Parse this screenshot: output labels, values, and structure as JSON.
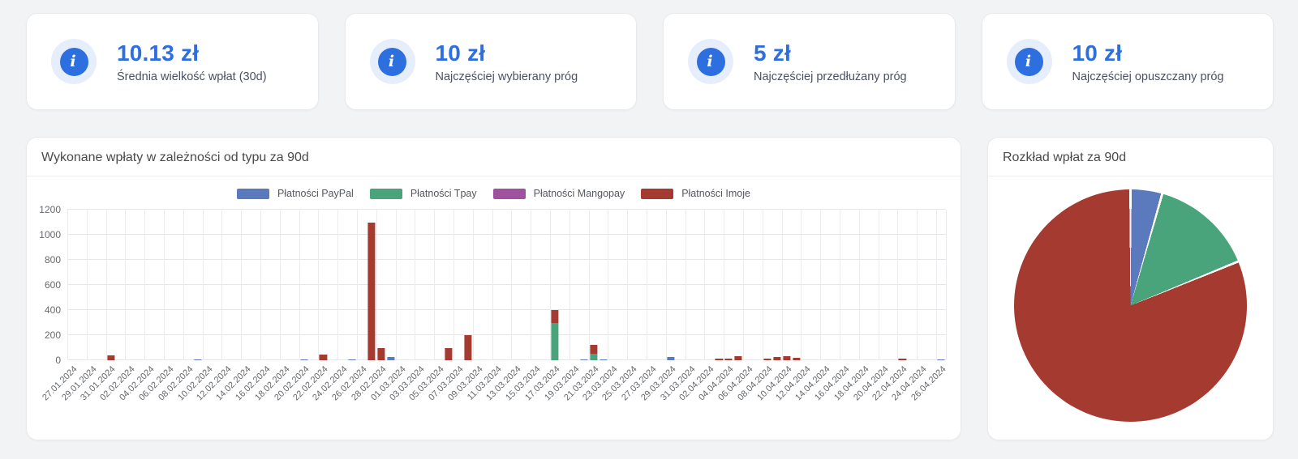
{
  "stats": [
    {
      "value": "10.13 zł",
      "label": "Średnia wielkość wpłat (30d)"
    },
    {
      "value": "10 zł",
      "label": "Najczęściej wybierany próg"
    },
    {
      "value": "5 zł",
      "label": "Najczęściej przedłużany próg"
    },
    {
      "value": "10 zł",
      "label": "Najczęściej opuszczany próg"
    }
  ],
  "colors": {
    "accent_blue": "#2e6fe0",
    "icon_bg": "#e6eefb",
    "paypal": "#5b79bd",
    "tpay": "#4aa47b",
    "mangopay": "#a0529e",
    "imoje": "#a53a31"
  },
  "chart_data": [
    {
      "type": "bar",
      "variant": "stacked",
      "title": "Wykonane wpłaty w zależności od typu za 90d",
      "x_start": "27.01.2024",
      "x_end": "26.04.2024",
      "days_total": 91,
      "ylim": [
        0,
        1200
      ],
      "y_ticks": [
        0,
        200,
        400,
        600,
        800,
        1000,
        1200
      ],
      "grid": true,
      "legend_position": "top",
      "tick_labels": [
        "27.01.2024",
        "29.01.2024",
        "31.01.2024",
        "02.02.2024",
        "04.02.2024",
        "06.02.2024",
        "08.02.2024",
        "10.02.2024",
        "12.02.2024",
        "14.02.2024",
        "16.02.2024",
        "18.02.2024",
        "20.02.2024",
        "22.02.2024",
        "24.02.2024",
        "26.02.2024",
        "28.02.2024",
        "01.03.2024",
        "03.03.2024",
        "05.03.2024",
        "07.03.2024",
        "09.03.2024",
        "11.03.2024",
        "13.03.2024",
        "15.03.2024",
        "17.03.2024",
        "19.03.2024",
        "21.03.2024",
        "23.03.2024",
        "25.03.2024",
        "27.03.2024",
        "29.03.2024",
        "31.03.2024",
        "02.04.2024",
        "04.04.2024",
        "06.04.2024",
        "08.04.2024",
        "10.04.2024",
        "12.04.2024",
        "14.04.2024",
        "16.04.2024",
        "18.04.2024",
        "20.04.2024",
        "22.04.2024",
        "24.04.2024",
        "26.04.2024"
      ],
      "series": [
        {
          "key": "paypal",
          "name": "Płatności PayPal",
          "color": "#5b79bd"
        },
        {
          "key": "tpay",
          "name": "Płatności Tpay",
          "color": "#4aa47b"
        },
        {
          "key": "mangopay",
          "name": "Płatności Mangopay",
          "color": "#a0529e"
        },
        {
          "key": "imoje",
          "name": "Płatności Imoje",
          "color": "#a53a31"
        }
      ],
      "bars": [
        {
          "date": "31.01.2024",
          "imoje": 40
        },
        {
          "date": "09.02.2024",
          "paypal": 5
        },
        {
          "date": "20.02.2024",
          "paypal": 5
        },
        {
          "date": "22.02.2024",
          "imoje": 45
        },
        {
          "date": "25.02.2024",
          "paypal": 6
        },
        {
          "date": "27.02.2024",
          "imoje": 1100
        },
        {
          "date": "28.02.2024",
          "imoje": 100
        },
        {
          "date": "29.02.2024",
          "paypal": 25
        },
        {
          "date": "06.03.2024",
          "imoje": 100
        },
        {
          "date": "08.03.2024",
          "imoje": 200
        },
        {
          "date": "17.03.2024",
          "tpay": 300,
          "imoje": 100
        },
        {
          "date": "20.03.2024",
          "paypal": 3
        },
        {
          "date": "21.03.2024",
          "tpay": 50,
          "imoje": 75
        },
        {
          "date": "22.03.2024",
          "paypal": 3
        },
        {
          "date": "29.03.2024",
          "paypal": 25
        },
        {
          "date": "03.04.2024",
          "imoje": 10
        },
        {
          "date": "04.04.2024",
          "imoje": 10
        },
        {
          "date": "05.04.2024",
          "imoje": 30
        },
        {
          "date": "08.04.2024",
          "imoje": 10
        },
        {
          "date": "09.04.2024",
          "imoje": 25
        },
        {
          "date": "10.04.2024",
          "imoje": 30
        },
        {
          "date": "11.04.2024",
          "imoje": 20
        },
        {
          "date": "22.04.2024",
          "imoje": 15
        },
        {
          "date": "26.04.2024",
          "paypal": 3
        }
      ]
    },
    {
      "type": "pie",
      "title": "Rozkład wpłat za 90d",
      "legend_position": "none",
      "slices": [
        {
          "label": "Płatności PayPal",
          "color": "#5b79bd",
          "percent": 4.4
        },
        {
          "label": "Płatności Tpay",
          "color": "#4aa47b",
          "percent": 14.4
        },
        {
          "label": "Płatności Mangopay",
          "color": "#a0529e",
          "percent": 0
        },
        {
          "label": "Płatności Imoje",
          "color": "#a53a31",
          "percent": 81.2
        }
      ]
    }
  ]
}
